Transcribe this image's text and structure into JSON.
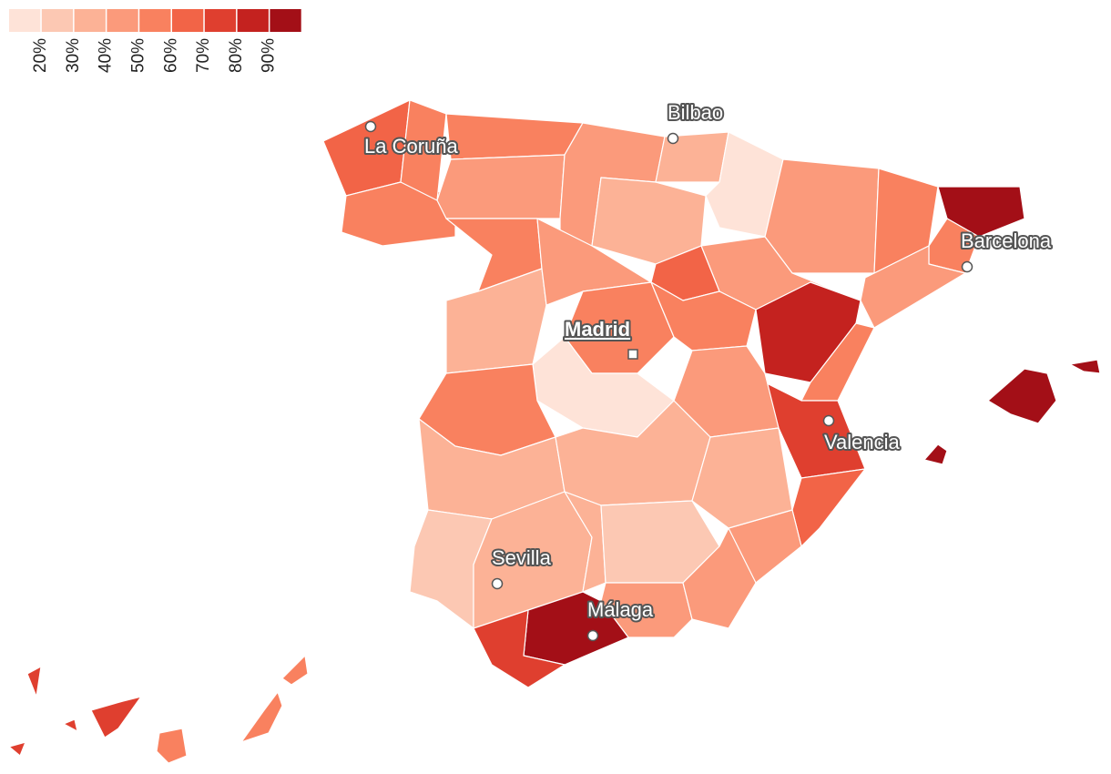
{
  "legend": {
    "ticks": [
      {
        "value": 20,
        "label": "20%"
      },
      {
        "value": 30,
        "label": "30%"
      },
      {
        "value": 40,
        "label": "40%"
      },
      {
        "value": 50,
        "label": "50%"
      },
      {
        "value": 60,
        "label": "60%"
      },
      {
        "value": 70,
        "label": "70%"
      },
      {
        "value": 80,
        "label": "80%"
      },
      {
        "value": 90,
        "label": "90%"
      }
    ],
    "colors": [
      "#fee3d8",
      "#fcc8b3",
      "#fcb296",
      "#fb9a7b",
      "#f9815f",
      "#f26447",
      "#df3f2f",
      "#c4221f",
      "#a30f17"
    ]
  },
  "regions": [
    62,
    50,
    55,
    55,
    48,
    52,
    40,
    32,
    30,
    15,
    45,
    52,
    95,
    55,
    40,
    40,
    62,
    82,
    50,
    72,
    65,
    45,
    30,
    40,
    52,
    55,
    48,
    18,
    57,
    33,
    38,
    32,
    20,
    32,
    32,
    22,
    42,
    47,
    92,
    75,
    90,
    90,
    90,
    75,
    55,
    58,
    58,
    72,
    72,
    72
  ],
  "cities": [
    {
      "name": "La Coruña"
    },
    {
      "name": "Bilbao"
    },
    {
      "name": "Barcelona"
    },
    {
      "name": "Madrid"
    },
    {
      "name": "Valencia"
    },
    {
      "name": "Sevilla"
    },
    {
      "name": "Málaga"
    }
  ]
}
